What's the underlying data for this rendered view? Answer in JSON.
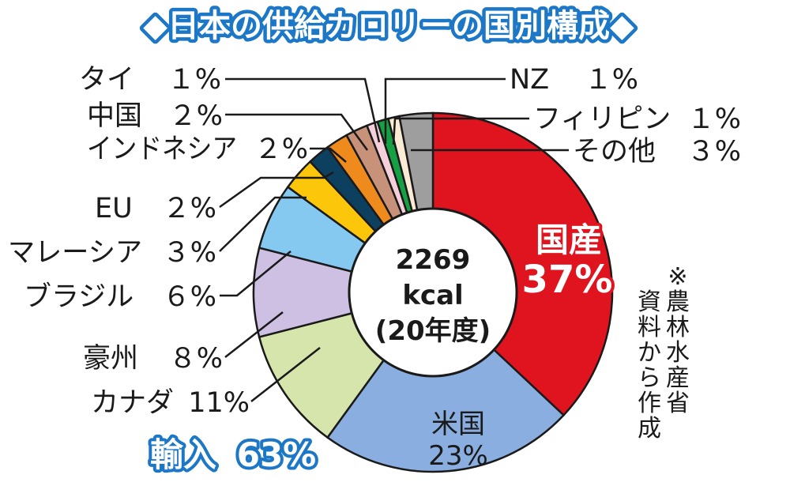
{
  "chart_data": {
    "type": "pie",
    "title": "◆日本の供給カロリーの国別構成◆",
    "total": {
      "value": "2269",
      "unit": "kcal",
      "year": "(20年度)"
    },
    "slices": [
      {
        "name": "国産",
        "value": 37,
        "label": "37%",
        "color": "#e0141e"
      },
      {
        "name": "米国",
        "value": 23,
        "label": "23%",
        "color": "#8aaee0"
      },
      {
        "name": "カナダ",
        "value": 11,
        "label": "11%",
        "color": "#d6e5ab"
      },
      {
        "name": "豪州",
        "value": 8,
        "label": "８%",
        "color": "#cdc0e2"
      },
      {
        "name": "ブラジル",
        "value": 6,
        "label": "６%",
        "color": "#85c9f0"
      },
      {
        "name": "マレーシア",
        "value": 3,
        "label": "３%",
        "color": "#fcc60a"
      },
      {
        "name": "EU",
        "value": 2,
        "label": "２%",
        "color": "#0d3f5e"
      },
      {
        "name": "インドネシア",
        "value": 2,
        "label": "２%",
        "color": "#ef8a1d"
      },
      {
        "name": "中国",
        "value": 2,
        "label": "２%",
        "color": "#c8927a"
      },
      {
        "name": "タイ",
        "value": 1,
        "label": "１%",
        "color": "#f5cfd9"
      },
      {
        "name": "NZ",
        "value": 1,
        "label": "１%",
        "color": "#17a043"
      },
      {
        "name": "フィリピン",
        "value": 1,
        "label": "１%",
        "color": "#faebd4"
      },
      {
        "name": "その他",
        "value": 3,
        "label": "３%",
        "color": "#9e9e9e"
      }
    ],
    "groups": {
      "domestic": {
        "label": "国産",
        "value": "37%",
        "color": "#e0141e"
      },
      "import": {
        "label": "輸入",
        "value": "63%",
        "color": "#1c78c7"
      }
    },
    "source_note": "※農林水産省資料から作成"
  }
}
